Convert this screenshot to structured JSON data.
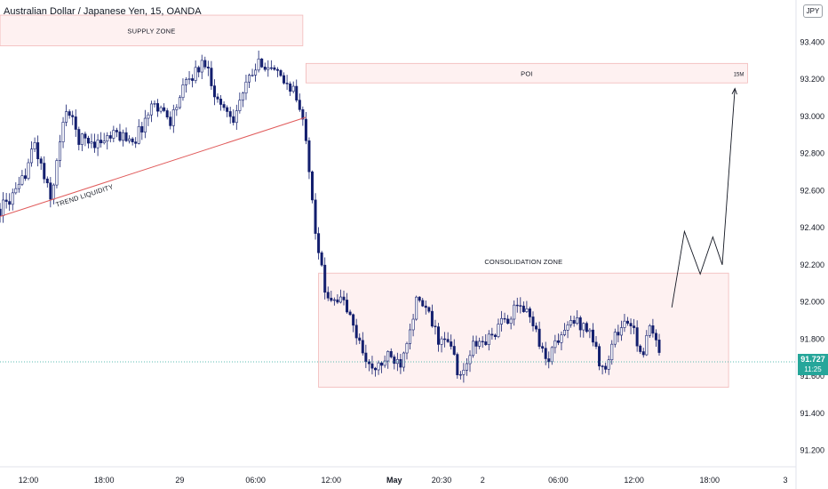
{
  "header": {
    "title": "Australian Dollar / Japanese Yen, 15, OANDA"
  },
  "currency_badge": "JPY",
  "last_price": {
    "value": "91.727",
    "countdown": "11:25",
    "color": "#26a69a"
  },
  "chart_data": {
    "type": "candlestick",
    "ylim": [
      91.15,
      93.55
    ],
    "y_ticks": [
      {
        "value": 93.4,
        "label": "93.400"
      },
      {
        "value": 93.2,
        "label": "93.200"
      },
      {
        "value": 93.0,
        "label": "93.000"
      },
      {
        "value": 92.8,
        "label": "92.800"
      },
      {
        "value": 92.6,
        "label": "92.600"
      },
      {
        "value": 92.4,
        "label": "92.400"
      },
      {
        "value": 92.2,
        "label": "92.200"
      },
      {
        "value": 92.0,
        "label": "92.000"
      },
      {
        "value": 91.8,
        "label": "91.800"
      },
      {
        "value": 91.6,
        "label": "91.600"
      },
      {
        "value": 91.4,
        "label": "91.400"
      },
      {
        "value": 91.2,
        "label": "91.200"
      }
    ],
    "x_ticks": [
      {
        "bar": 0,
        "label": "12:00"
      },
      {
        "bar": 24,
        "label": "18:00"
      },
      {
        "bar": 48,
        "label": "29"
      },
      {
        "bar": 72,
        "label": "06:00"
      },
      {
        "bar": 96,
        "label": "12:00"
      },
      {
        "bar": 116,
        "label": "May"
      },
      {
        "bar": 131,
        "label": "20:30"
      },
      {
        "bar": 144,
        "label": "2"
      },
      {
        "bar": 168,
        "label": "06:00"
      },
      {
        "bar": 192,
        "label": "12:00"
      },
      {
        "bar": 216,
        "label": "18:00"
      },
      {
        "bar": 240,
        "label": "3"
      }
    ],
    "bar_range": [
      -9,
      249
    ],
    "anchors": [
      [
        -9,
        92.5
      ],
      [
        -3,
        92.6
      ],
      [
        2,
        92.85
      ],
      [
        7,
        92.55
      ],
      [
        12,
        93.05
      ],
      [
        16,
        92.88
      ],
      [
        22,
        92.86
      ],
      [
        28,
        92.9
      ],
      [
        34,
        92.88
      ],
      [
        40,
        93.08
      ],
      [
        45,
        92.98
      ],
      [
        50,
        93.18
      ],
      [
        56,
        93.3
      ],
      [
        60,
        93.08
      ],
      [
        65,
        93.0
      ],
      [
        70,
        93.2
      ],
      [
        74,
        93.3
      ],
      [
        80,
        93.2
      ],
      [
        84,
        93.15
      ],
      [
        88,
        92.9
      ],
      [
        91,
        92.4
      ],
      [
        94,
        92.05
      ],
      [
        100,
        92.0
      ],
      [
        104,
        91.82
      ],
      [
        109,
        91.62
      ],
      [
        114,
        91.7
      ],
      [
        118,
        91.68
      ],
      [
        123,
        92.0
      ],
      [
        126,
        91.96
      ],
      [
        130,
        91.8
      ],
      [
        134,
        91.76
      ],
      [
        137,
        91.58
      ],
      [
        141,
        91.76
      ],
      [
        146,
        91.8
      ],
      [
        151,
        91.9
      ],
      [
        156,
        91.98
      ],
      [
        160,
        91.9
      ],
      [
        164,
        91.68
      ],
      [
        168,
        91.8
      ],
      [
        173,
        91.9
      ],
      [
        178,
        91.85
      ],
      [
        182,
        91.62
      ],
      [
        186,
        91.82
      ],
      [
        190,
        91.9
      ],
      [
        195,
        91.72
      ],
      [
        197,
        91.86
      ],
      [
        200,
        91.73
      ]
    ],
    "color_up": "#ffffff",
    "color_down": "#131e6e",
    "zones": [
      {
        "label": "SUPPLY ZONE",
        "bar_start": -9,
        "bar_end": 87,
        "y_top": 93.545,
        "y_bottom": 93.38
      },
      {
        "label": "POI",
        "sublabel": "15M",
        "bar_start": 88,
        "bar_end": 228,
        "y_top": 93.285,
        "y_bottom": 93.18
      },
      {
        "label": "CONSOLIDATION ZONE",
        "bar_start": 92,
        "bar_end": 222,
        "y_top": 92.155,
        "y_bottom": 91.54
      }
    ],
    "trendline": {
      "label": "TREND LIQUIDITY",
      "points": [
        [
          -9,
          92.46
        ],
        [
          88,
          92.995
        ]
      ],
      "color": "#e05a5a"
    },
    "projection": [
      [
        204,
        91.97
      ],
      [
        208,
        92.38
      ],
      [
        213,
        92.15
      ],
      [
        217,
        92.35
      ],
      [
        220,
        92.2
      ],
      [
        224,
        93.15
      ]
    ],
    "last_price_value": 91.727
  }
}
